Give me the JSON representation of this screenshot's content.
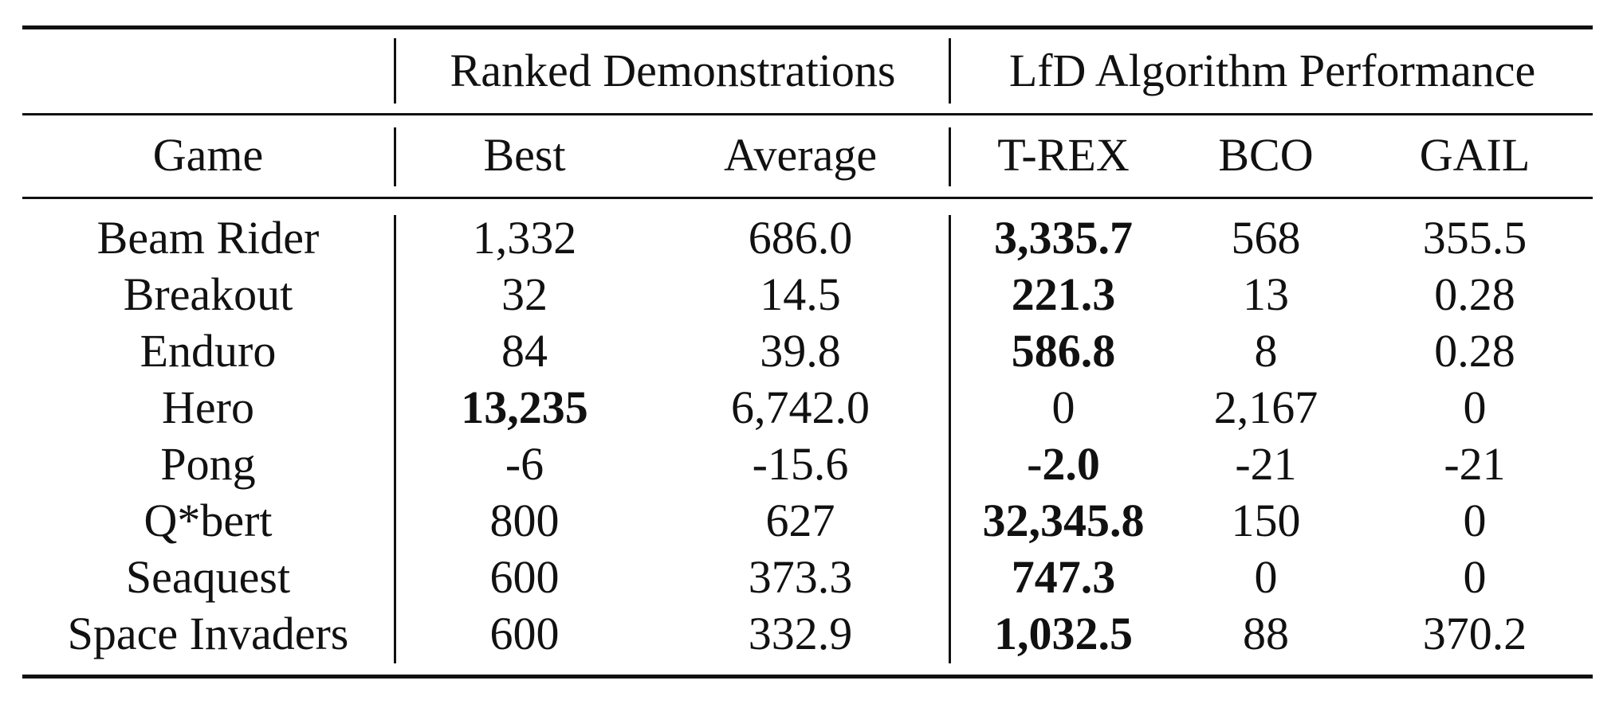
{
  "table": {
    "group_headers": {
      "ranked": "Ranked Demonstrations",
      "lfd": "LfD Algorithm Performance"
    },
    "columns": [
      "Game",
      "Best",
      "Average",
      "T-REX",
      "BCO",
      "GAIL"
    ],
    "rows": [
      {
        "game": "Beam Rider",
        "best": "1,332",
        "average": "686.0",
        "trex": "3,335.7",
        "bco": "568",
        "gail": "355.5",
        "bold": [
          "trex"
        ]
      },
      {
        "game": "Breakout",
        "best": "32",
        "average": "14.5",
        "trex": "221.3",
        "bco": "13",
        "gail": "0.28",
        "bold": [
          "trex"
        ]
      },
      {
        "game": "Enduro",
        "best": "84",
        "average": "39.8",
        "trex": "586.8",
        "bco": "8",
        "gail": "0.28",
        "bold": [
          "trex"
        ]
      },
      {
        "game": "Hero",
        "best": "13,235",
        "average": "6,742.0",
        "trex": "0",
        "bco": "2,167",
        "gail": "0",
        "bold": [
          "best"
        ]
      },
      {
        "game": "Pong",
        "best": "-6",
        "average": "-15.6",
        "trex": "-2.0",
        "bco": "-21",
        "gail": "-21",
        "bold": [
          "trex"
        ]
      },
      {
        "game": "Q*bert",
        "best": "800",
        "average": "627",
        "trex": "32,345.8",
        "bco": "150",
        "gail": "0",
        "bold": [
          "trex"
        ]
      },
      {
        "game": "Seaquest",
        "best": "600",
        "average": "373.3",
        "trex": "747.3",
        "bco": "0",
        "gail": "0",
        "bold": [
          "trex"
        ]
      },
      {
        "game": "Space Invaders",
        "best": "600",
        "average": "332.9",
        "trex": "1,032.5",
        "bco": "88",
        "gail": "370.2",
        "bold": [
          "trex"
        ]
      }
    ]
  }
}
